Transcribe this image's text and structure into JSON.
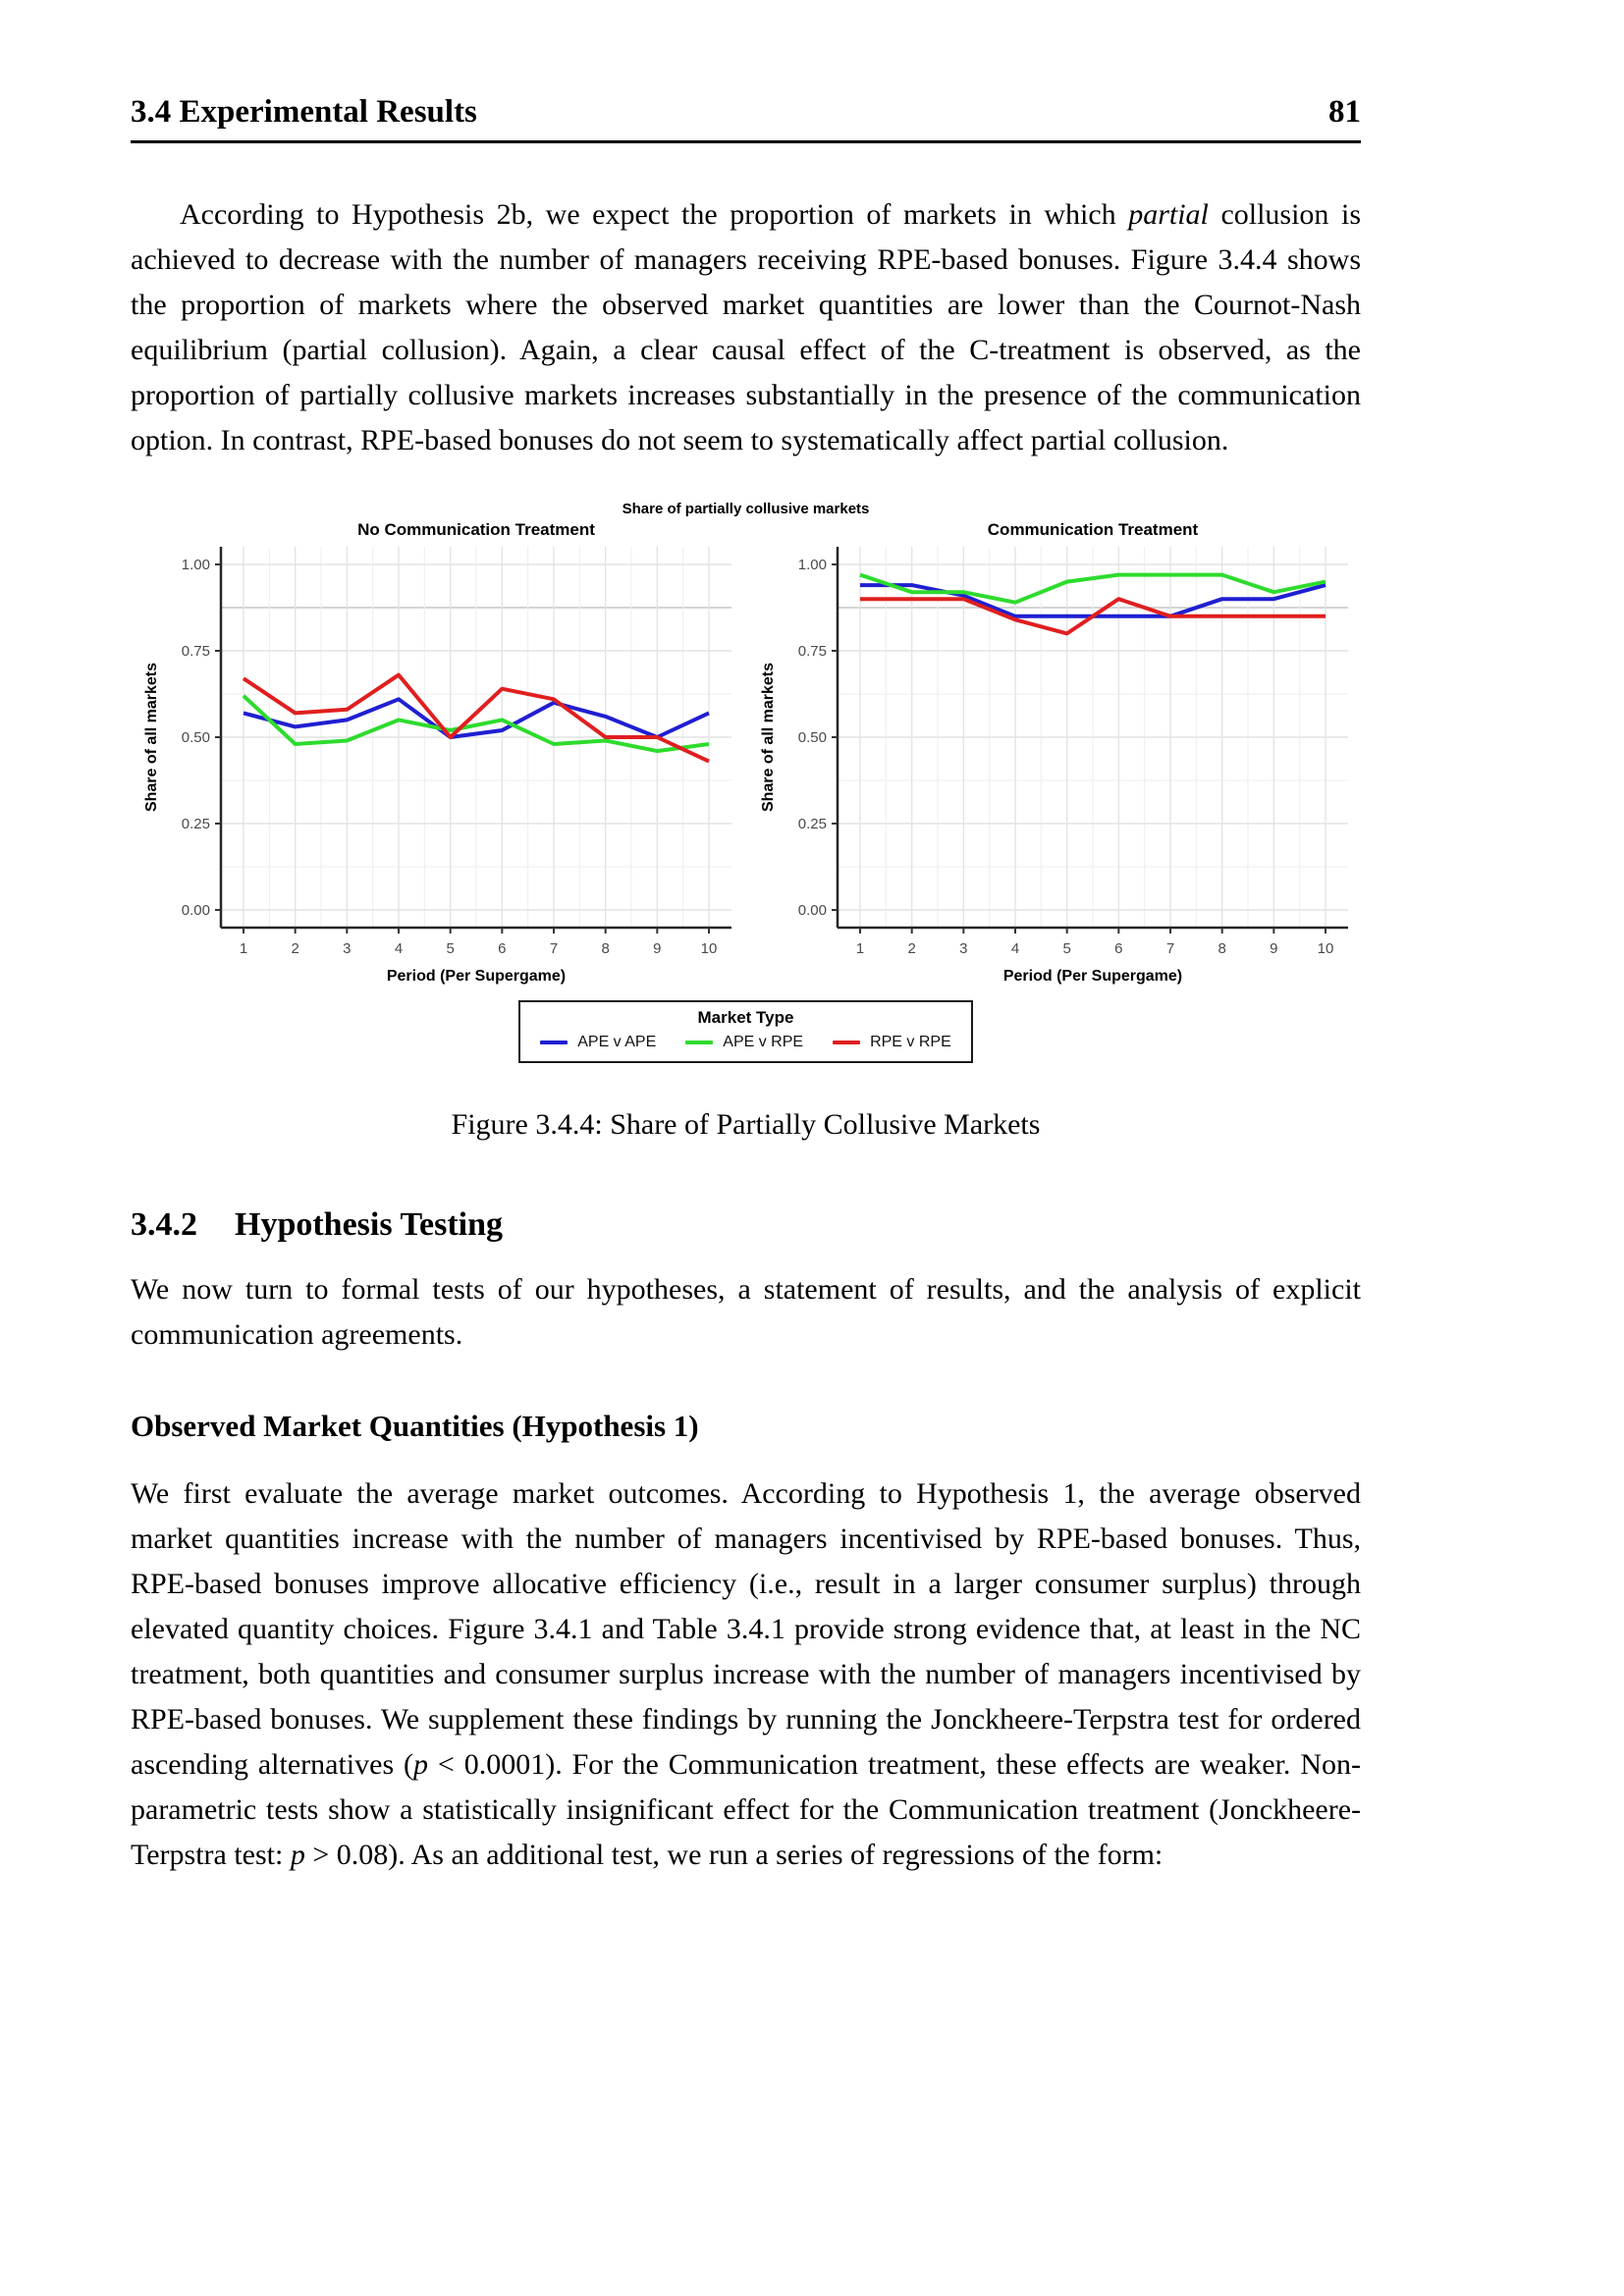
{
  "page": {
    "running_header": "3.4 Experimental Results",
    "page_number": "81"
  },
  "para1": {
    "pre": "According to Hypothesis 2b, we expect the proportion of markets in which ",
    "italic": "partial",
    "post": " collusion is achieved to decrease with the number of managers receiving RPE-based bonuses. Figure 3.4.4 shows the proportion of markets where the observed market quantities are lower than the Cournot-Nash equilibrium (partial collusion). Again, a clear causal effect of the C-treatment is observed, as the proportion of partially collusive markets increases substantially in the presence of the communication option. In contrast, RPE-based bonuses do not seem to systematically affect partial collusion."
  },
  "figure": {
    "title": "Share of partially collusive markets",
    "caption": "Figure 3.4.4: Share of Partially Collusive Markets",
    "legend": {
      "title": "Market Type",
      "entries": [
        {
          "label": "APE v APE",
          "color": "#1f1fd1"
        },
        {
          "label": "APE v RPE",
          "color": "#2edb2e"
        },
        {
          "label": "RPE v RPE",
          "color": "#e01f1f"
        }
      ]
    }
  },
  "chart_data": [
    {
      "type": "line",
      "title": "No Communication Treatment",
      "xlabel": "Period (Per Supergame)",
      "ylabel": "Share of all markets",
      "x": [
        1,
        2,
        3,
        4,
        5,
        6,
        7,
        8,
        9,
        10
      ],
      "ylim": [
        0,
        1
      ],
      "yticks": [
        0,
        0.25,
        0.5,
        0.75,
        1
      ],
      "grid": "on",
      "series": [
        {
          "name": "APE v APE",
          "color": "#1f1fd1",
          "values": [
            0.57,
            0.53,
            0.55,
            0.61,
            0.5,
            0.52,
            0.6,
            0.56,
            0.5,
            0.57
          ]
        },
        {
          "name": "APE v RPE",
          "color": "#2edb2e",
          "values": [
            0.62,
            0.48,
            0.49,
            0.55,
            0.52,
            0.55,
            0.48,
            0.49,
            0.46,
            0.48
          ]
        },
        {
          "name": "RPE v RPE",
          "color": "#e01f1f",
          "values": [
            0.67,
            0.57,
            0.58,
            0.68,
            0.5,
            0.64,
            0.61,
            0.5,
            0.5,
            0.43
          ]
        }
      ]
    },
    {
      "type": "line",
      "title": "Communication Treatment",
      "xlabel": "Period (Per Supergame)",
      "ylabel": "Share of all markets",
      "x": [
        1,
        2,
        3,
        4,
        5,
        6,
        7,
        8,
        9,
        10
      ],
      "ylim": [
        0,
        1
      ],
      "yticks": [
        0,
        0.25,
        0.5,
        0.75,
        1
      ],
      "grid": "on",
      "series": [
        {
          "name": "APE v APE",
          "color": "#1f1fd1",
          "values": [
            0.94,
            0.94,
            0.91,
            0.85,
            0.85,
            0.85,
            0.85,
            0.9,
            0.9,
            0.94
          ]
        },
        {
          "name": "APE v RPE",
          "color": "#2edb2e",
          "values": [
            0.97,
            0.92,
            0.92,
            0.89,
            0.95,
            0.97,
            0.97,
            0.97,
            0.92,
            0.95
          ]
        },
        {
          "name": "RPE v RPE",
          "color": "#e01f1f",
          "values": [
            0.9,
            0.9,
            0.9,
            0.84,
            0.8,
            0.9,
            0.85,
            0.85,
            0.85,
            0.85
          ]
        }
      ]
    }
  ],
  "section_342": {
    "number": "3.4.2",
    "title": "Hypothesis Testing"
  },
  "para2": "We now turn to formal tests of our hypotheses, a statement of results, and the analysis of explicit communication agreements.",
  "heading_observed": "Observed Market Quantities (Hypothesis 1)",
  "para3": {
    "s1": "We first evaluate the average market outcomes. According to Hypothesis 1, the average observed market quantities increase with the number of managers incentivised by RPE-based bonuses. Thus, RPE-based bonuses improve allocative efficiency (i.e., result in a larger consumer surplus) through elevated quantity choices. Figure 3.4.1 and Table 3.4.1 provide strong evidence that, at least in the NC treatment, both quantities and consumer surplus increase with the number of managers incentivised by RPE-based bonuses. We supplement these findings by running the Jonckheere-Terpstra test for ordered ascending alternatives (",
    "s2": "p",
    "s3": " < 0.0001). For the Communication treatment, these effects are weaker. Non-parametric tests show a statistically insignificant effect for the Communication treatment (Jonckheere-Terpstra test: ",
    "s4": "p",
    "s5": " > 0.08). As an additional test, we run a series of regressions of the form:"
  }
}
